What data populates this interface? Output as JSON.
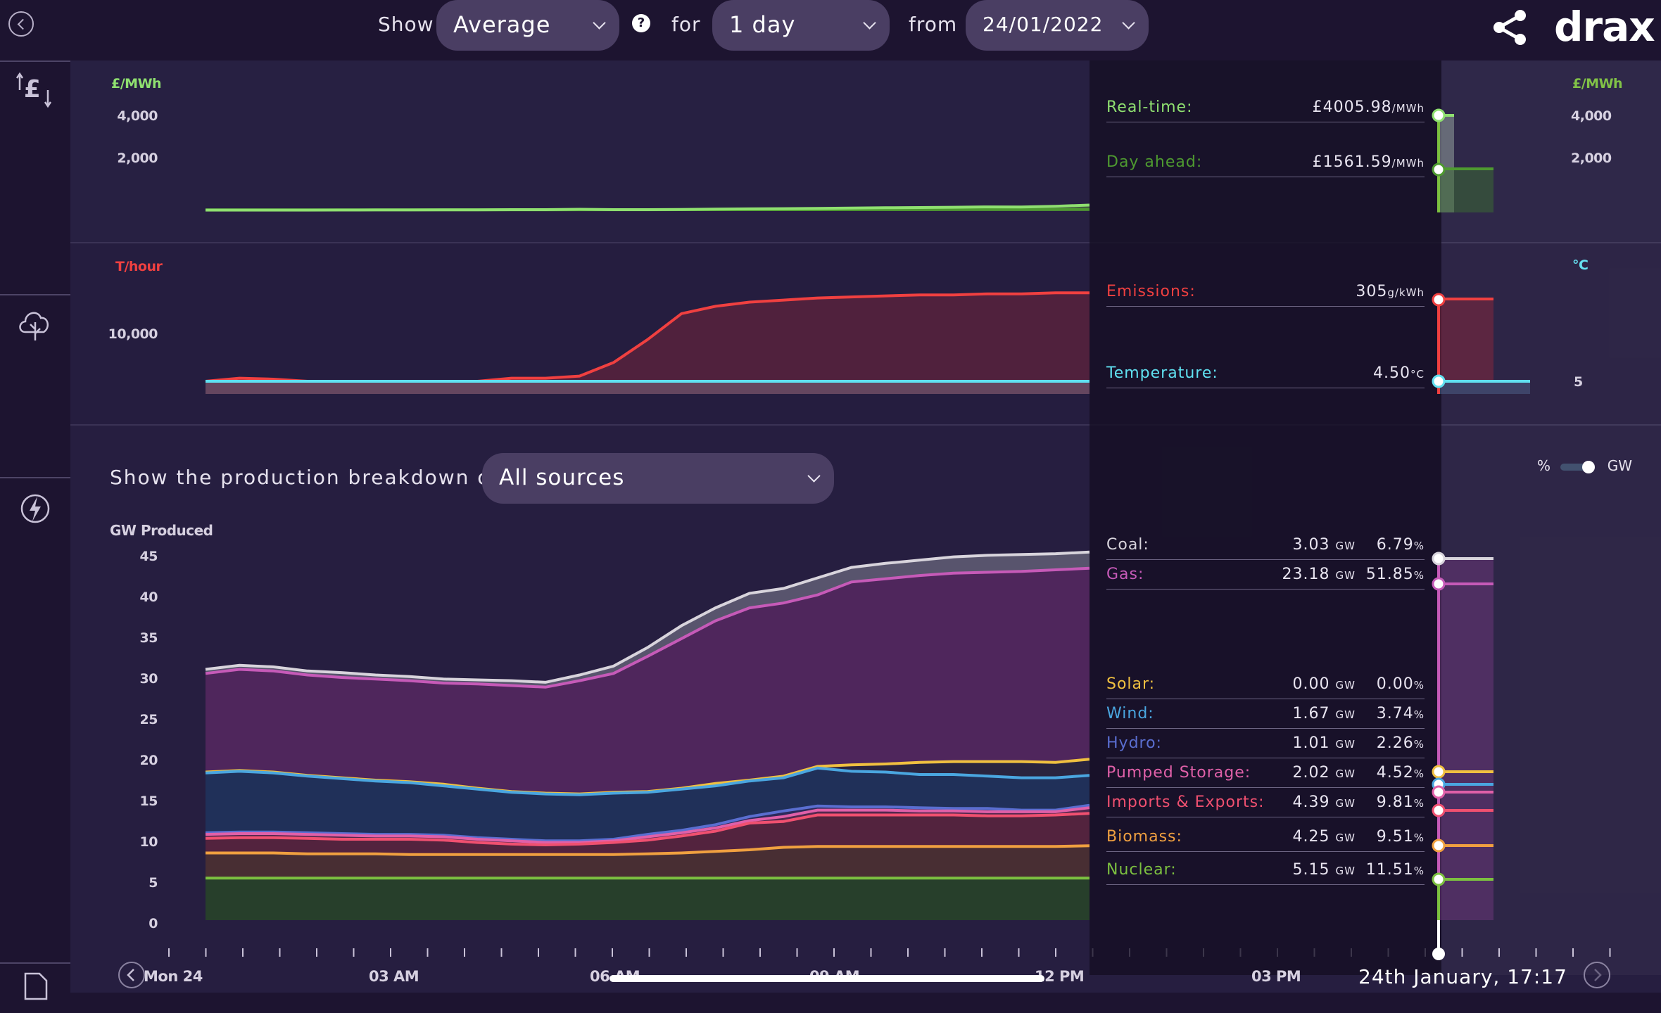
{
  "header": {
    "show_label": "Show",
    "show_value": "Average",
    "for_label": "for",
    "for_value": "1 day",
    "from_label": "from",
    "from_value": "24/01/2022",
    "help": "?",
    "brand": "drax"
  },
  "icons": {
    "back": "back-circle-icon",
    "share": "share-icon",
    "price": "price-icon",
    "emissions": "cloud-leaf-icon",
    "power": "lightning-icon",
    "doc": "document-icon"
  },
  "price_panel": {
    "unit_left": "£/MWh",
    "unit_right": "£/MWh",
    "ticks": [
      "4,000",
      "2,000"
    ],
    "realtime_label": "Real-time:",
    "realtime_value": "£4005.98",
    "realtime_unit": "/MWh",
    "dayahead_label": "Day ahead:",
    "dayahead_value": "£1561.59",
    "dayahead_unit": "/MWh"
  },
  "emissions_panel": {
    "unit_left": "T/hour",
    "unit_right": "°C",
    "tick_left": "10,000",
    "tick_right": "5",
    "emissions_label": "Emissions:",
    "emissions_value": "305",
    "emissions_unit": "g/kWh",
    "temperature_label": "Temperature:",
    "temperature_value": "4.50",
    "temperature_unit": "°C"
  },
  "production_panel": {
    "breakdown_label": "Show the production breakdown of",
    "breakdown_value": "All sources",
    "toggle_percent": "%",
    "toggle_gw": "GW",
    "ylabel": "GW Produced",
    "yticks": [
      "45",
      "40",
      "35",
      "30",
      "25",
      "20",
      "15",
      "10",
      "5",
      "0"
    ],
    "sources": [
      {
        "name": "Coal:",
        "gw": "3.03",
        "pct": "6.79",
        "color": "#d8d4dc"
      },
      {
        "name": "Gas:",
        "gw": "23.18",
        "pct": "51.85",
        "color": "#c65ab8"
      },
      {
        "name": "Solar:",
        "gw": "0.00",
        "pct": "0.00",
        "color": "#f0c040"
      },
      {
        "name": "Wind:",
        "gw": "1.67",
        "pct": "3.74",
        "color": "#4aa6e0"
      },
      {
        "name": "Hydro:",
        "gw": "1.01",
        "pct": "2.26",
        "color": "#5a6ed0"
      },
      {
        "name": "Pumped Storage:",
        "gw": "2.02",
        "pct": "4.52",
        "color": "#e060a8"
      },
      {
        "name": "Imports & Exports:",
        "gw": "4.39",
        "pct": "9.81",
        "color": "#f05070"
      },
      {
        "name": "Biomass:",
        "gw": "4.25",
        "pct": "9.51",
        "color": "#f0a040"
      },
      {
        "name": "Nuclear:",
        "gw": "5.15",
        "pct": "11.51",
        "color": "#7cc040"
      }
    ],
    "gw_unit": "GW",
    "pct_unit": "%"
  },
  "xaxis": {
    "labels": [
      "Mon 24",
      "03 AM",
      "06 AM",
      "09 AM",
      "12 PM",
      "03 PM"
    ]
  },
  "current_time": "24th January, 17:17"
}
